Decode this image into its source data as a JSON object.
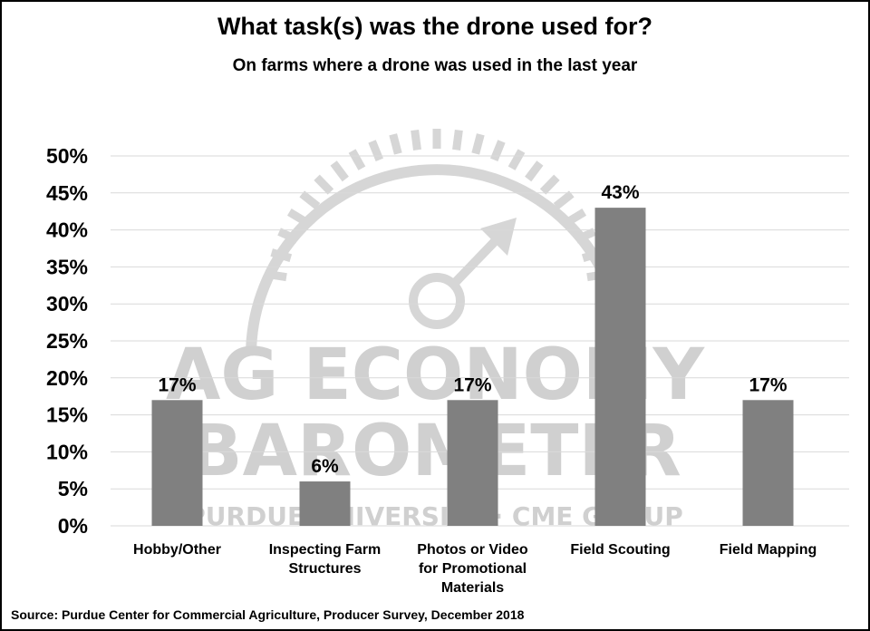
{
  "chart_data": {
    "type": "bar",
    "title": "What task(s) was the drone used for?",
    "subtitle": "On farms where a drone was used in the last year",
    "categories": [
      [
        "Hobby/Other"
      ],
      [
        "Inspecting Farm",
        "Structures"
      ],
      [
        "Photos or Video",
        "for Promotional",
        "Materials"
      ],
      [
        "Field Scouting"
      ],
      [
        "Field Mapping"
      ]
    ],
    "values": [
      17,
      6,
      17,
      43,
      17
    ],
    "data_labels": [
      "17%",
      "6%",
      "17%",
      "43%",
      "17%"
    ],
    "ylim": [
      0,
      50
    ],
    "yticks": [
      "0%",
      "5%",
      "10%",
      "15%",
      "20%",
      "25%",
      "30%",
      "35%",
      "40%",
      "45%",
      "50%"
    ],
    "grid": true,
    "legend": "none",
    "bar_color": "#808080"
  },
  "source": "Source: Purdue Center for Commercial Agriculture, Producer Survey, December 2018",
  "watermark": {
    "line1": "AG ECONOMY",
    "line2": "BAROMETER",
    "line3": "PURDUE UNIVERSITY · CME GROUP"
  }
}
